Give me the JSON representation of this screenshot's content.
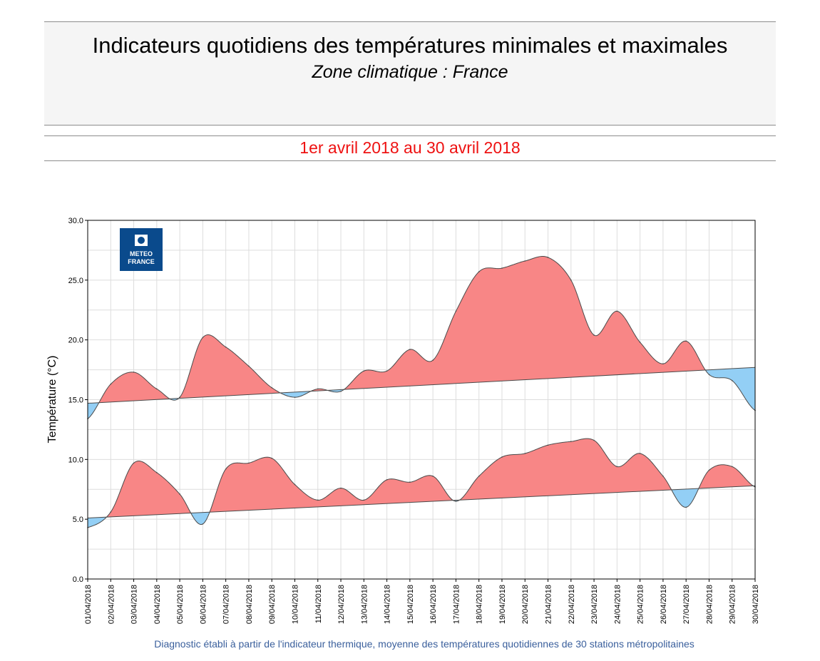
{
  "header": {
    "title": "Indicateurs quotidiens des températures minimales et maximales",
    "subtitle": "Zone climatique : France",
    "date_range": "1er avril 2018 au 30 avril 2018"
  },
  "logo": {
    "line1": "METEO",
    "line2": "FRANCE",
    "color": "#0a4a8c"
  },
  "footnote": "Diagnostic établi à partir de l'indicateur thermique, moyenne des températures quotidiennes de 30 stations métropolitaines",
  "colors": {
    "above": "#f88686",
    "below": "#93cff5",
    "line": "#4a4a4a",
    "grid": "#dddddd"
  },
  "chart_data": {
    "type": "area",
    "ylabel": "Température (°C)",
    "ylim": [
      0,
      30
    ],
    "yticks": [
      "0.0",
      "5.0",
      "10.0",
      "15.0",
      "20.0",
      "25.0",
      "30.0"
    ],
    "grid": true,
    "x": [
      "01/04/2018",
      "02/04/2018",
      "03/04/2018",
      "04/04/2018",
      "05/04/2018",
      "06/04/2018",
      "07/04/2018",
      "08/04/2018",
      "09/04/2018",
      "10/04/2018",
      "11/04/2018",
      "12/04/2018",
      "13/04/2018",
      "14/04/2018",
      "15/04/2018",
      "16/04/2018",
      "17/04/2018",
      "18/04/2018",
      "19/04/2018",
      "20/04/2018",
      "21/04/2018",
      "22/04/2018",
      "23/04/2018",
      "24/04/2018",
      "25/04/2018",
      "26/04/2018",
      "27/04/2018",
      "28/04/2018",
      "29/04/2018",
      "30/04/2018"
    ],
    "series": [
      {
        "values": [
          13.4,
          16.3,
          17.3,
          15.9,
          15.2,
          20.2,
          19.4,
          17.8,
          16.0,
          15.2,
          15.9,
          15.7,
          17.4,
          17.4,
          19.2,
          18.3,
          22.4,
          25.7,
          26.0,
          26.6,
          26.9,
          25.0,
          20.4,
          22.4,
          19.8,
          18.0,
          19.9,
          17.1,
          16.6,
          14.1
        ],
        "normal": [
          14.7,
          17.7
        ]
      },
      {
        "values": [
          4.3,
          5.6,
          9.7,
          8.9,
          7.1,
          4.6,
          9.2,
          9.7,
          10.1,
          7.9,
          6.6,
          7.6,
          6.6,
          8.3,
          8.1,
          8.6,
          6.5,
          8.6,
          10.2,
          10.5,
          11.2,
          11.5,
          11.6,
          9.4,
          10.5,
          8.6,
          6.0,
          9.1,
          9.4,
          7.7
        ],
        "normal": [
          5.1,
          7.8
        ]
      }
    ]
  }
}
